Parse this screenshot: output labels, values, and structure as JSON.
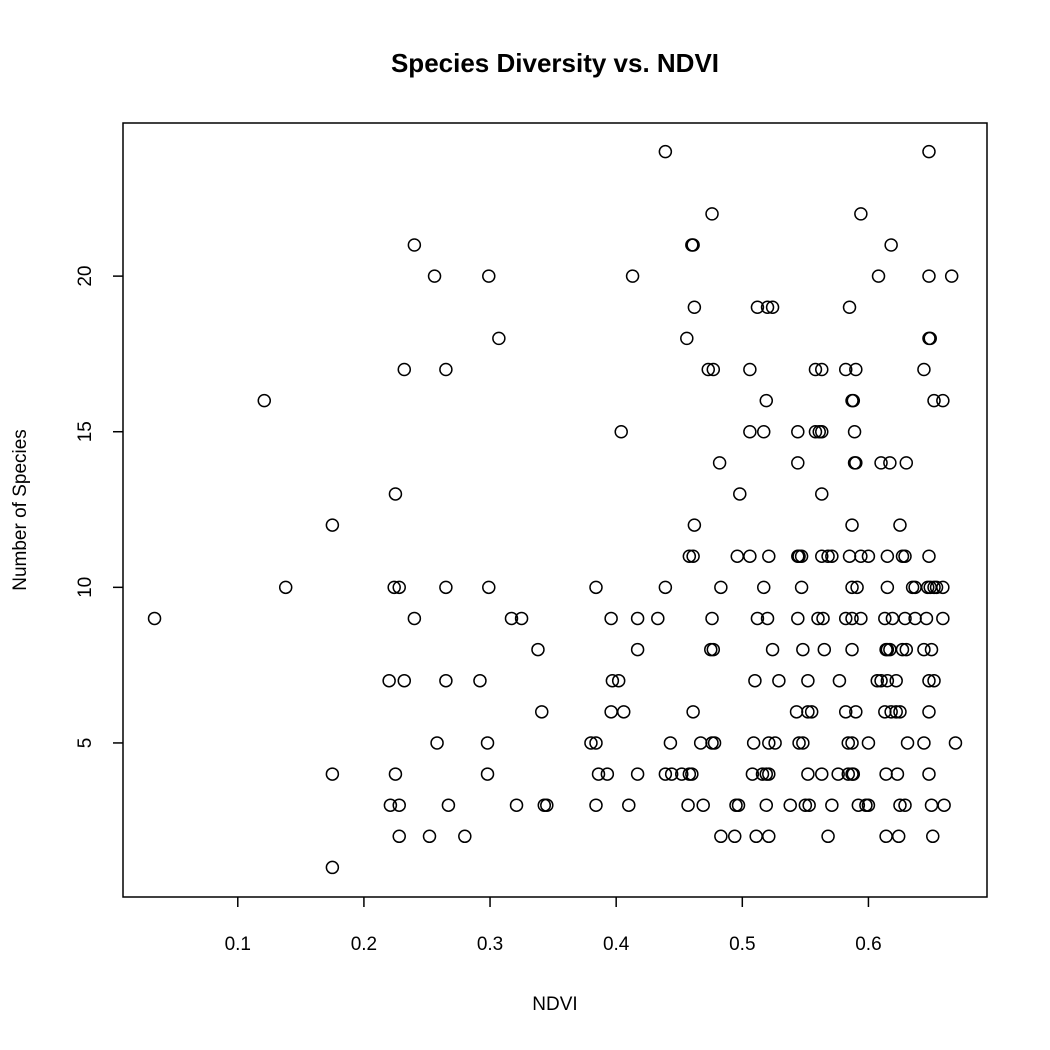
{
  "chart_data": {
    "type": "scatter",
    "title": "Species Diversity vs. NDVI",
    "x_label": "NDVI",
    "y_label": "Number of Species",
    "color": "#000000",
    "xlim": [
      0.009,
      0.694
    ],
    "ylim": [
      0.05,
      24.92
    ],
    "xticks": [
      0.1,
      0.2,
      0.3,
      0.4,
      0.5,
      0.6
    ],
    "yticks": [
      5,
      10,
      15,
      20
    ],
    "x": [
      0.439,
      0.648,
      0.476,
      0.594,
      0.24,
      0.46,
      0.461,
      0.618,
      0.256,
      0.299,
      0.413,
      0.608,
      0.648,
      0.666,
      0.462,
      0.512,
      0.52,
      0.524,
      0.585,
      0.307,
      0.456,
      0.648,
      0.649,
      0.232,
      0.265,
      0.473,
      0.477,
      0.506,
      0.558,
      0.563,
      0.582,
      0.59,
      0.644,
      0.121,
      0.519,
      0.587,
      0.588,
      0.652,
      0.659,
      0.404,
      0.506,
      0.517,
      0.544,
      0.558,
      0.561,
      0.563,
      0.589,
      0.482,
      0.544,
      0.589,
      0.59,
      0.61,
      0.617,
      0.63,
      0.225,
      0.498,
      0.563,
      0.175,
      0.462,
      0.587,
      0.625,
      0.458,
      0.461,
      0.496,
      0.506,
      0.521,
      0.544,
      0.545,
      0.547,
      0.563,
      0.568,
      0.571,
      0.585,
      0.594,
      0.6,
      0.615,
      0.627,
      0.629,
      0.648,
      0.138,
      0.224,
      0.228,
      0.265,
      0.299,
      0.384,
      0.439,
      0.483,
      0.517,
      0.547,
      0.587,
      0.591,
      0.615,
      0.635,
      0.637,
      0.647,
      0.649,
      0.652,
      0.654,
      0.659,
      0.034,
      0.24,
      0.317,
      0.325,
      0.396,
      0.417,
      0.433,
      0.476,
      0.512,
      0.52,
      0.544,
      0.56,
      0.564,
      0.582,
      0.587,
      0.594,
      0.613,
      0.619,
      0.629,
      0.637,
      0.646,
      0.659,
      0.338,
      0.417,
      0.475,
      0.477,
      0.524,
      0.548,
      0.565,
      0.587,
      0.614,
      0.615,
      0.617,
      0.627,
      0.63,
      0.644,
      0.65,
      0.22,
      0.232,
      0.265,
      0.292,
      0.397,
      0.402,
      0.51,
      0.529,
      0.552,
      0.577,
      0.607,
      0.61,
      0.615,
      0.622,
      0.648,
      0.652,
      0.341,
      0.396,
      0.406,
      0.461,
      0.543,
      0.552,
      0.555,
      0.582,
      0.59,
      0.613,
      0.618,
      0.622,
      0.625,
      0.648,
      0.258,
      0.298,
      0.38,
      0.384,
      0.443,
      0.467,
      0.476,
      0.478,
      0.509,
      0.521,
      0.526,
      0.545,
      0.548,
      0.584,
      0.587,
      0.6,
      0.631,
      0.644,
      0.669,
      0.175,
      0.225,
      0.298,
      0.386,
      0.393,
      0.417,
      0.439,
      0.444,
      0.452,
      0.458,
      0.46,
      0.508,
      0.516,
      0.519,
      0.521,
      0.552,
      0.563,
      0.576,
      0.584,
      0.587,
      0.588,
      0.614,
      0.623,
      0.648,
      0.221,
      0.228,
      0.267,
      0.321,
      0.343,
      0.345,
      0.384,
      0.41,
      0.457,
      0.469,
      0.495,
      0.497,
      0.519,
      0.538,
      0.55,
      0.553,
      0.571,
      0.592,
      0.598,
      0.6,
      0.625,
      0.629,
      0.65,
      0.66,
      0.228,
      0.252,
      0.28,
      0.483,
      0.494,
      0.511,
      0.521,
      0.568,
      0.614,
      0.624,
      0.651,
      0.175
    ],
    "values": [
      24,
      24,
      22,
      22,
      21,
      21,
      21,
      21,
      20,
      20,
      20,
      20,
      20,
      20,
      19,
      19,
      19,
      19,
      19,
      18,
      18,
      18,
      18,
      17,
      17,
      17,
      17,
      17,
      17,
      17,
      17,
      17,
      17,
      16,
      16,
      16,
      16,
      16,
      16,
      15,
      15,
      15,
      15,
      15,
      15,
      15,
      15,
      14,
      14,
      14,
      14,
      14,
      14,
      14,
      13,
      13,
      13,
      12,
      12,
      12,
      12,
      11,
      11,
      11,
      11,
      11,
      11,
      11,
      11,
      11,
      11,
      11,
      11,
      11,
      11,
      11,
      11,
      11,
      11,
      10,
      10,
      10,
      10,
      10,
      10,
      10,
      10,
      10,
      10,
      10,
      10,
      10,
      10,
      10,
      10,
      10,
      10,
      10,
      10,
      9,
      9,
      9,
      9,
      9,
      9,
      9,
      9,
      9,
      9,
      9,
      9,
      9,
      9,
      9,
      9,
      9,
      9,
      9,
      9,
      9,
      9,
      8,
      8,
      8,
      8,
      8,
      8,
      8,
      8,
      8,
      8,
      8,
      8,
      8,
      8,
      8,
      7,
      7,
      7,
      7,
      7,
      7,
      7,
      7,
      7,
      7,
      7,
      7,
      7,
      7,
      7,
      7,
      6,
      6,
      6,
      6,
      6,
      6,
      6,
      6,
      6,
      6,
      6,
      6,
      6,
      6,
      5,
      5,
      5,
      5,
      5,
      5,
      5,
      5,
      5,
      5,
      5,
      5,
      5,
      5,
      5,
      5,
      5,
      5,
      5,
      4,
      4,
      4,
      4,
      4,
      4,
      4,
      4,
      4,
      4,
      4,
      4,
      4,
      4,
      4,
      4,
      4,
      4,
      4,
      4,
      4,
      4,
      4,
      4,
      3,
      3,
      3,
      3,
      3,
      3,
      3,
      3,
      3,
      3,
      3,
      3,
      3,
      3,
      3,
      3,
      3,
      3,
      3,
      3,
      3,
      3,
      3,
      3,
      2,
      2,
      2,
      2,
      2,
      2,
      2,
      2,
      2,
      2,
      2,
      1
    ]
  }
}
